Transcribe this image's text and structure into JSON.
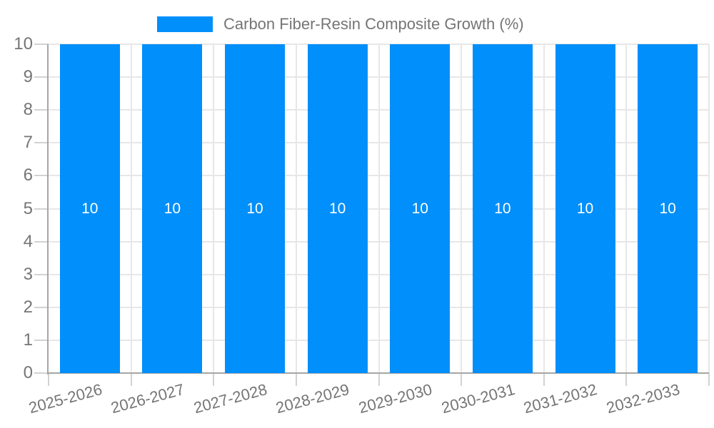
{
  "colors": {
    "bar": "#008ffb",
    "grid": "#e7e7e7",
    "tick": "#d2d2d2",
    "axis_line": "#a6a6a6",
    "axis_text": "#757575",
    "value_text": "#ffffff"
  },
  "legend": {
    "label": "Carbon Fiber-Resin Composite Growth (%)"
  },
  "chart_data": {
    "type": "bar",
    "title": "Carbon Fiber-Resin Composite Growth (%)",
    "categories": [
      "2025-2026",
      "2026-2027",
      "2027-2028",
      "2028-2029",
      "2029-2030",
      "2030-2031",
      "2031-2032",
      "2032-2033"
    ],
    "series": [
      {
        "name": "Carbon Fiber-Resin Composite Growth (%)",
        "values": [
          10,
          10,
          10,
          10,
          10,
          10,
          10,
          10
        ]
      }
    ],
    "value_labels": [
      "10",
      "10",
      "10",
      "10",
      "10",
      "10",
      "10",
      "10"
    ],
    "yticks": [
      0,
      1,
      2,
      3,
      4,
      5,
      6,
      7,
      8,
      9,
      10
    ],
    "ylim": [
      0,
      10
    ],
    "xlabel": "",
    "ylabel": "",
    "grid": true,
    "legend_position": "top"
  }
}
